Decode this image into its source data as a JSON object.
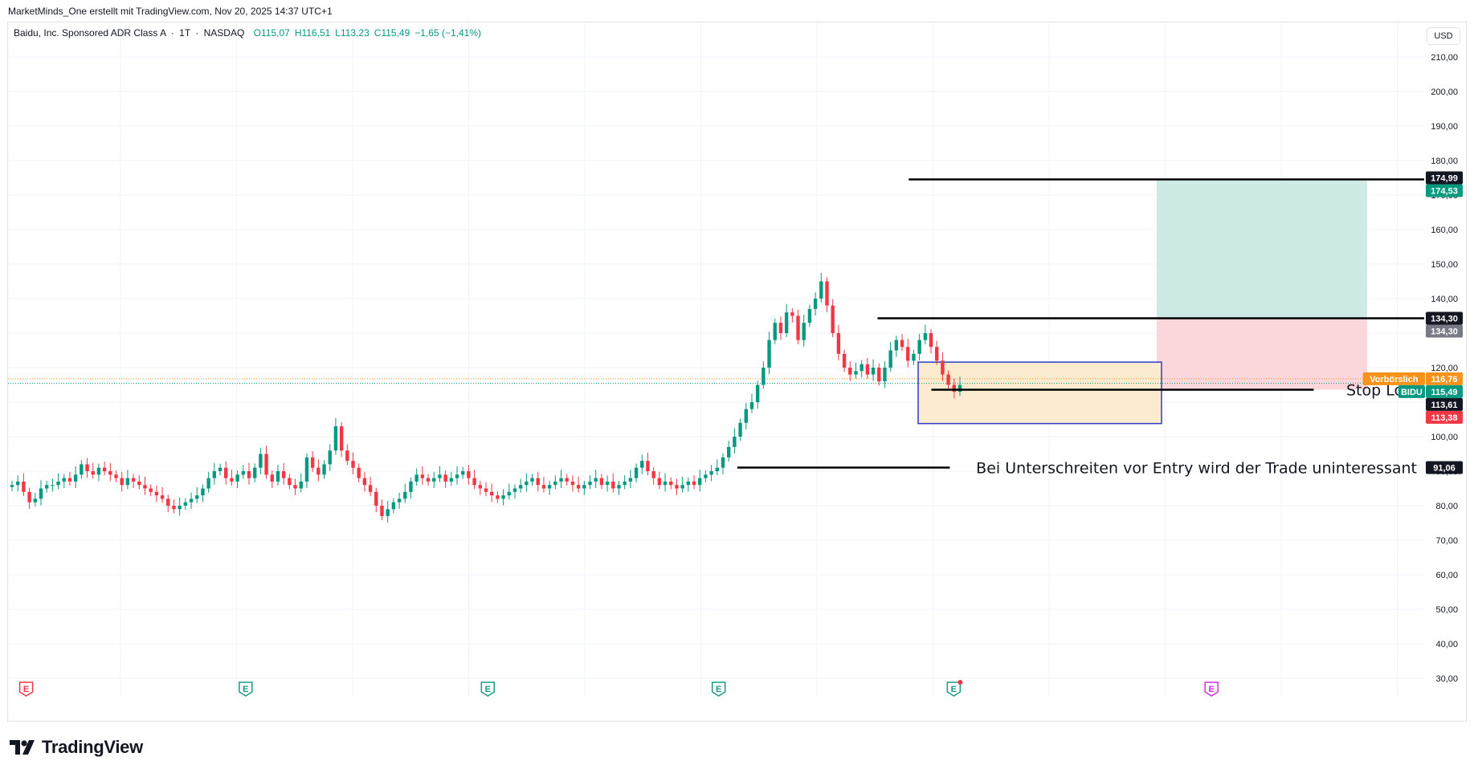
{
  "header": {
    "author_line": "MarketMinds_One erstellt mit TradingView.com, Nov 20, 2025 14:37 UTC+1"
  },
  "legend": {
    "symbol": "Baidu, Inc. Sponsored ADR Class A",
    "interval": "1T",
    "exchange": "NASDAQ",
    "separator": "·",
    "open": "O115,07",
    "high": "H116,51",
    "low": "L113,23",
    "close": "C115,49",
    "change": "−1,65 (−1,41%)"
  },
  "currency": "USD",
  "brand": {
    "name": "TradingView",
    "logo": "tradingview-logo-icon"
  },
  "colors": {
    "up": "#089981",
    "down": "#f23645",
    "grid": "#f0f3fa",
    "target_zone": "#cdebe4",
    "stop_zone": "#fbd6db",
    "entry_zone": "#fdebd0",
    "entry_border": "#2d3bc7",
    "premarket": "#f7931a",
    "earnings_icon": "#1a9a85",
    "earnings_future": "#d42de3"
  },
  "chart_data": {
    "type": "candlestick",
    "symbol": "BIDU",
    "ylim": [
      30,
      210
    ],
    "y_ticks": [
      "210,00",
      "200,00",
      "190,00",
      "180,00",
      "170,00",
      "160,00",
      "150,00",
      "140,00",
      "130,00",
      "120,00",
      "110,00",
      "100,00",
      "90,00",
      "80,00",
      "70,00",
      "60,00",
      "50,00",
      "40,00",
      "30,00"
    ],
    "y_tick_values": [
      210,
      200,
      190,
      180,
      170,
      160,
      150,
      140,
      130,
      120,
      110,
      100,
      90,
      80,
      70,
      60,
      50,
      40,
      30
    ],
    "grid": true,
    "price_tags": [
      {
        "label": "",
        "text": "174,99",
        "value": 174.99,
        "color": "#131722"
      },
      {
        "label": "",
        "text": "174,53",
        "value": 174.53,
        "color": "#089981"
      },
      {
        "label": "",
        "text": "134,30",
        "value": 134.3,
        "color": "#131722"
      },
      {
        "label": "",
        "text": "134,30",
        "value": 134.3,
        "color": "#787b86"
      },
      {
        "label": "Vorbörslich",
        "text": "116,76",
        "value": 116.76,
        "color": "#f7931a"
      },
      {
        "label": "BIDU",
        "text": "115,49",
        "value": 115.49,
        "color": "#089981"
      },
      {
        "label": "",
        "text": "113,61",
        "value": 113.61,
        "color": "#131722"
      },
      {
        "label": "",
        "text": "113,38",
        "value": 113.38,
        "color": "#f23645"
      },
      {
        "label": "",
        "text": "91,06",
        "value": 91.06,
        "color": "#131722"
      }
    ],
    "horizontal_lines": [
      {
        "value": 174.53,
        "x_start": 0.636,
        "x_end": 1.0
      },
      {
        "value": 134.3,
        "x_start": 0.614,
        "x_end": 1.0
      },
      {
        "value": 113.61,
        "x_start": 0.652,
        "x_end": 0.922
      },
      {
        "value": 91.06,
        "x_start": 0.515,
        "x_end": 0.665
      }
    ],
    "annotations": [
      {
        "text": "Stop Loss",
        "value": 113.61
      },
      {
        "text": "Bei Unterschreiten vor Entry wird der Trade uninteressant",
        "value": 91.06
      }
    ],
    "zones": {
      "target": {
        "from": 134.3,
        "to": 174.53
      },
      "stop": {
        "from": 113.61,
        "to": 134.3
      },
      "entry_box": {
        "from": 103.8,
        "to": 121.6
      }
    },
    "premarket_line": 116.76,
    "last_line": 115.49,
    "earnings": [
      {
        "x": 0.006,
        "label": "E",
        "type": "past-miss"
      },
      {
        "x": 0.161,
        "label": "E",
        "type": "past"
      },
      {
        "x": 0.332,
        "label": "E",
        "type": "past"
      },
      {
        "x": 0.495,
        "label": "E",
        "type": "past"
      },
      {
        "x": 0.661,
        "label": "E",
        "type": "recent"
      },
      {
        "x": 0.843,
        "label": "E",
        "type": "future"
      }
    ],
    "closes": [
      86,
      87,
      84,
      81,
      82,
      85,
      86,
      86,
      87,
      88,
      87,
      89,
      92,
      90,
      89,
      91,
      90,
      89,
      88,
      86,
      88,
      87,
      86,
      85,
      84,
      83,
      82,
      80,
      79,
      80,
      81,
      82,
      83,
      85,
      88,
      90,
      91,
      88,
      87,
      89,
      90,
      88,
      91,
      95,
      89,
      87,
      90,
      88,
      86,
      85,
      87,
      94,
      91,
      89,
      92,
      96,
      103,
      96,
      93,
      91,
      88,
      86,
      84,
      80,
      77,
      79,
      81,
      82,
      84,
      87,
      89,
      88,
      87,
      88,
      89,
      87,
      88,
      89,
      90,
      88,
      86,
      85,
      84,
      83,
      82,
      83,
      84,
      85,
      86,
      87,
      88,
      86,
      85,
      86,
      87,
      88,
      87,
      86,
      85,
      86,
      87,
      88,
      86,
      87,
      85,
      86,
      87,
      88,
      91,
      93,
      90,
      88,
      86,
      87,
      86,
      85,
      86,
      87,
      86,
      88,
      89,
      90,
      91,
      94,
      97,
      100,
      104,
      108,
      110,
      115,
      120,
      128,
      133,
      130,
      136,
      135,
      128,
      133,
      137,
      140,
      145,
      138,
      130,
      124,
      120,
      118,
      119,
      121,
      118,
      120,
      116,
      120,
      125,
      128,
      126,
      122,
      124,
      128,
      130,
      126,
      122,
      118,
      115,
      113,
      115
    ]
  }
}
